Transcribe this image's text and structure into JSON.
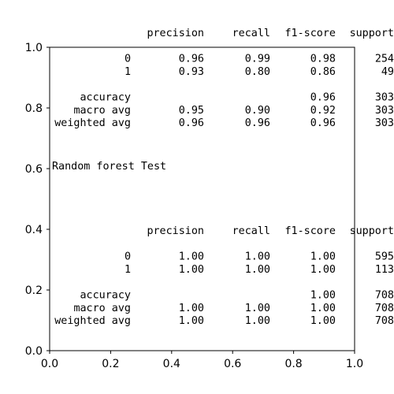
{
  "chart_data": {
    "type": "table",
    "xlim": [
      0.0,
      1.0
    ],
    "ylim": [
      0.0,
      1.0
    ],
    "x_ticks": [
      "0.0",
      "0.2",
      "0.4",
      "0.6",
      "0.8",
      "1.0"
    ],
    "y_ticks": [
      "0.0",
      "0.2",
      "0.4",
      "0.6",
      "0.8",
      "1.0"
    ],
    "grid": false,
    "columns": [
      "precision",
      "recall",
      "f1-score",
      "support"
    ],
    "reports": [
      {
        "caption": "",
        "rows": [
          {
            "label": "0",
            "precision": "0.96",
            "recall": "0.99",
            "f1": "0.98",
            "support": "254"
          },
          {
            "label": "1",
            "precision": "0.93",
            "recall": "0.80",
            "f1": "0.86",
            "support": "49"
          },
          {
            "label": "accuracy",
            "precision": "",
            "recall": "",
            "f1": "0.96",
            "support": "303"
          },
          {
            "label": "macro avg",
            "precision": "0.95",
            "recall": "0.90",
            "f1": "0.92",
            "support": "303"
          },
          {
            "label": "weighted avg",
            "precision": "0.96",
            "recall": "0.96",
            "f1": "0.96",
            "support": "303"
          }
        ]
      },
      {
        "caption": "Random forest Test",
        "rows": [
          {
            "label": "0",
            "precision": "1.00",
            "recall": "1.00",
            "f1": "1.00",
            "support": "595"
          },
          {
            "label": "1",
            "precision": "1.00",
            "recall": "1.00",
            "f1": "1.00",
            "support": "113"
          },
          {
            "label": "accuracy",
            "precision": "",
            "recall": "",
            "f1": "1.00",
            "support": "708"
          },
          {
            "label": "macro avg",
            "precision": "1.00",
            "recall": "1.00",
            "f1": "1.00",
            "support": "708"
          },
          {
            "label": "weighted avg",
            "precision": "1.00",
            "recall": "1.00",
            "f1": "1.00",
            "support": "708"
          }
        ]
      }
    ]
  }
}
